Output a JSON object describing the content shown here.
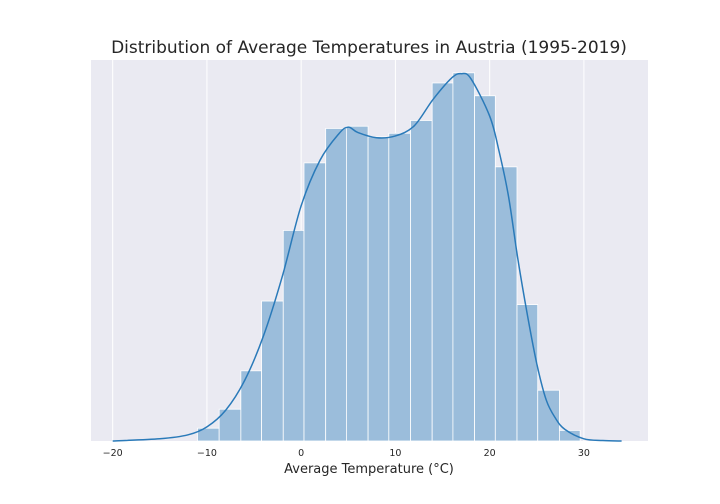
{
  "chart_data": {
    "type": "bar",
    "title": "Distribution of Average Temperatures in Austria (1995-2019)",
    "xlabel": "Average Temperature (°C)",
    "ylabel": "",
    "x_ticks": [
      -20,
      -10,
      0,
      10,
      20,
      30
    ],
    "xlim": [
      -22.3,
      36.8
    ],
    "grid": true,
    "background": "#eaeaf2",
    "bar_color": "#9bbddb",
    "bar_edge_color": "#ffffff",
    "kde_color": "#2a7ab9",
    "bins": [
      {
        "start": -11.0,
        "end": -8.7,
        "density": 0.0029
      },
      {
        "start": -8.7,
        "end": -6.4,
        "density": 0.0072
      },
      {
        "start": -6.4,
        "end": -4.2,
        "density": 0.0159
      },
      {
        "start": -4.2,
        "end": -1.9,
        "density": 0.0317
      },
      {
        "start": -1.9,
        "end": 0.3,
        "density": 0.0477
      },
      {
        "start": 0.3,
        "end": 2.6,
        "density": 0.063
      },
      {
        "start": 2.6,
        "end": 4.8,
        "density": 0.0708
      },
      {
        "start": 4.8,
        "end": 7.1,
        "density": 0.0713
      },
      {
        "start": 7.1,
        "end": 9.3,
        "density": 0.0689
      },
      {
        "start": 9.3,
        "end": 11.6,
        "density": 0.0697
      },
      {
        "start": 11.6,
        "end": 13.9,
        "density": 0.0726
      },
      {
        "start": 13.9,
        "end": 16.1,
        "density": 0.0811
      },
      {
        "start": 16.1,
        "end": 18.4,
        "density": 0.0834
      },
      {
        "start": 18.4,
        "end": 20.6,
        "density": 0.0782
      },
      {
        "start": 20.6,
        "end": 22.9,
        "density": 0.0621
      },
      {
        "start": 22.9,
        "end": 25.1,
        "density": 0.0309
      },
      {
        "start": 25.1,
        "end": 27.4,
        "density": 0.0115
      },
      {
        "start": 27.4,
        "end": 29.6,
        "density": 0.0024
      }
    ],
    "kde": {
      "x": [
        -20,
        -15,
        -12,
        -10,
        -8,
        -6,
        -4,
        -2,
        0,
        2,
        4,
        5,
        6,
        8,
        10,
        12,
        14,
        16,
        17,
        18,
        20,
        21,
        22,
        23,
        24,
        25,
        26,
        27,
        28,
        30,
        32,
        34
      ],
      "y": [
        0.0,
        0.0005,
        0.0014,
        0.0032,
        0.007,
        0.0137,
        0.0238,
        0.0373,
        0.0533,
        0.0636,
        0.0696,
        0.0711,
        0.0699,
        0.0687,
        0.0691,
        0.0714,
        0.0774,
        0.0823,
        0.0832,
        0.0821,
        0.0736,
        0.0656,
        0.0554,
        0.0411,
        0.0286,
        0.0175,
        0.0093,
        0.0051,
        0.0026,
        0.0005,
        0.0001,
        0.0
      ]
    },
    "ylim": [
      0,
      0.0863
    ]
  }
}
